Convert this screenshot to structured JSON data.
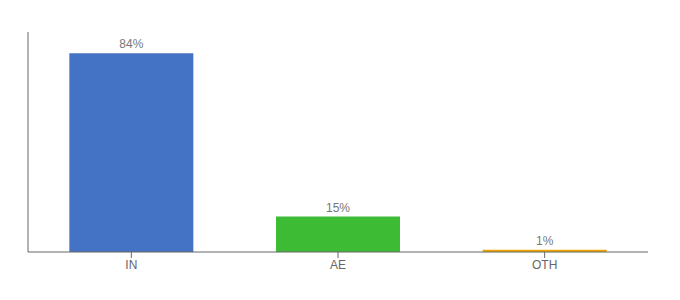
{
  "chart_data": {
    "type": "bar",
    "categories": [
      "IN",
      "AE",
      "OTH"
    ],
    "values": [
      84,
      15,
      1
    ],
    "value_labels": [
      "84%",
      "15%",
      "1%"
    ],
    "colors": [
      "#4472c4",
      "#3dbb35",
      "#f0a500"
    ],
    "ylim": [
      0,
      93
    ],
    "data_labels": true,
    "tick_labels": "x",
    "grid": false
  }
}
